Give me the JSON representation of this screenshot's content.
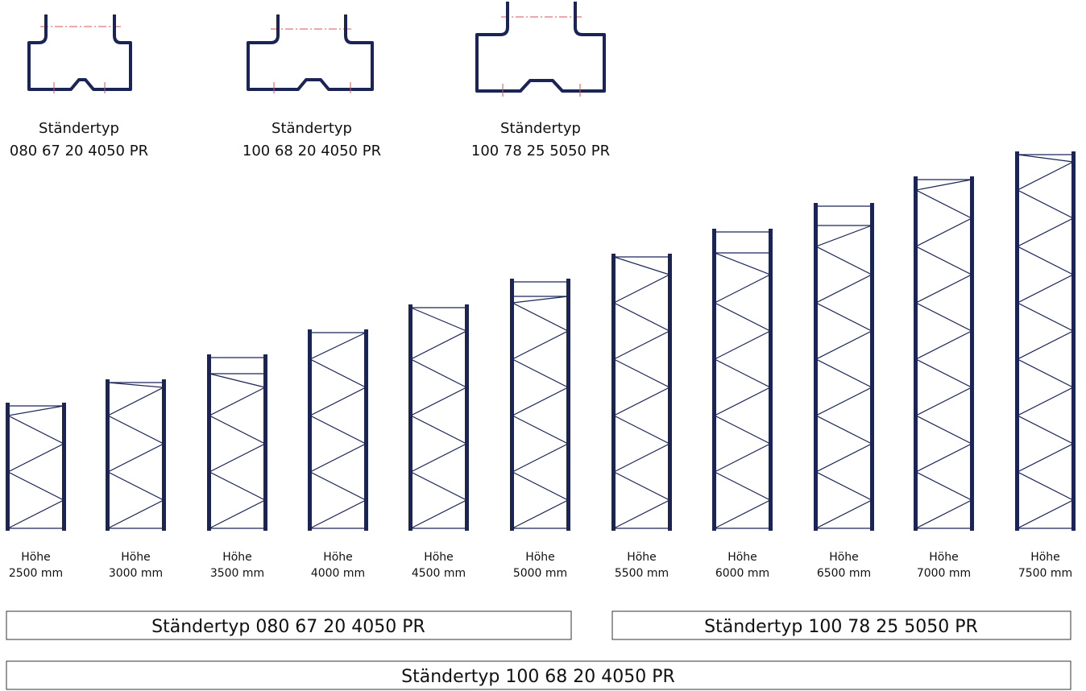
{
  "colors": {
    "frame": "#1a2456",
    "centerline": "#d9534f",
    "legend_border": "#333333",
    "text": "#111111"
  },
  "profiles": [
    {
      "line1": "Ständertyp",
      "line2": "080 67 20 4050 PR"
    },
    {
      "line1": "Ständertyp",
      "line2": "100 68 20 4050 PR"
    },
    {
      "line1": "Ständertyp",
      "line2": "100 78 25 5050 PR"
    }
  ],
  "frames": [
    {
      "line1": "Höhe",
      "line2": "2500 mm"
    },
    {
      "line1": "Höhe",
      "line2": "3000 mm"
    },
    {
      "line1": "Höhe",
      "line2": "3500 mm"
    },
    {
      "line1": "Höhe",
      "line2": "4000 mm"
    },
    {
      "line1": "Höhe",
      "line2": "4500 mm"
    },
    {
      "line1": "Höhe",
      "line2": "5000 mm"
    },
    {
      "line1": "Höhe",
      "line2": "5500 mm"
    },
    {
      "line1": "Höhe",
      "line2": "6000 mm"
    },
    {
      "line1": "Höhe",
      "line2": "6500 mm"
    },
    {
      "line1": "Höhe",
      "line2": "7000 mm"
    },
    {
      "line1": "Höhe",
      "line2": "7500 mm"
    }
  ],
  "legend": {
    "left": "Ständertyp 080 67 20 4050 PR",
    "right": "Ständertyp  100 78 25 5050 PR",
    "bottom": "Ständertyp  100 68 20 4050 PR"
  }
}
